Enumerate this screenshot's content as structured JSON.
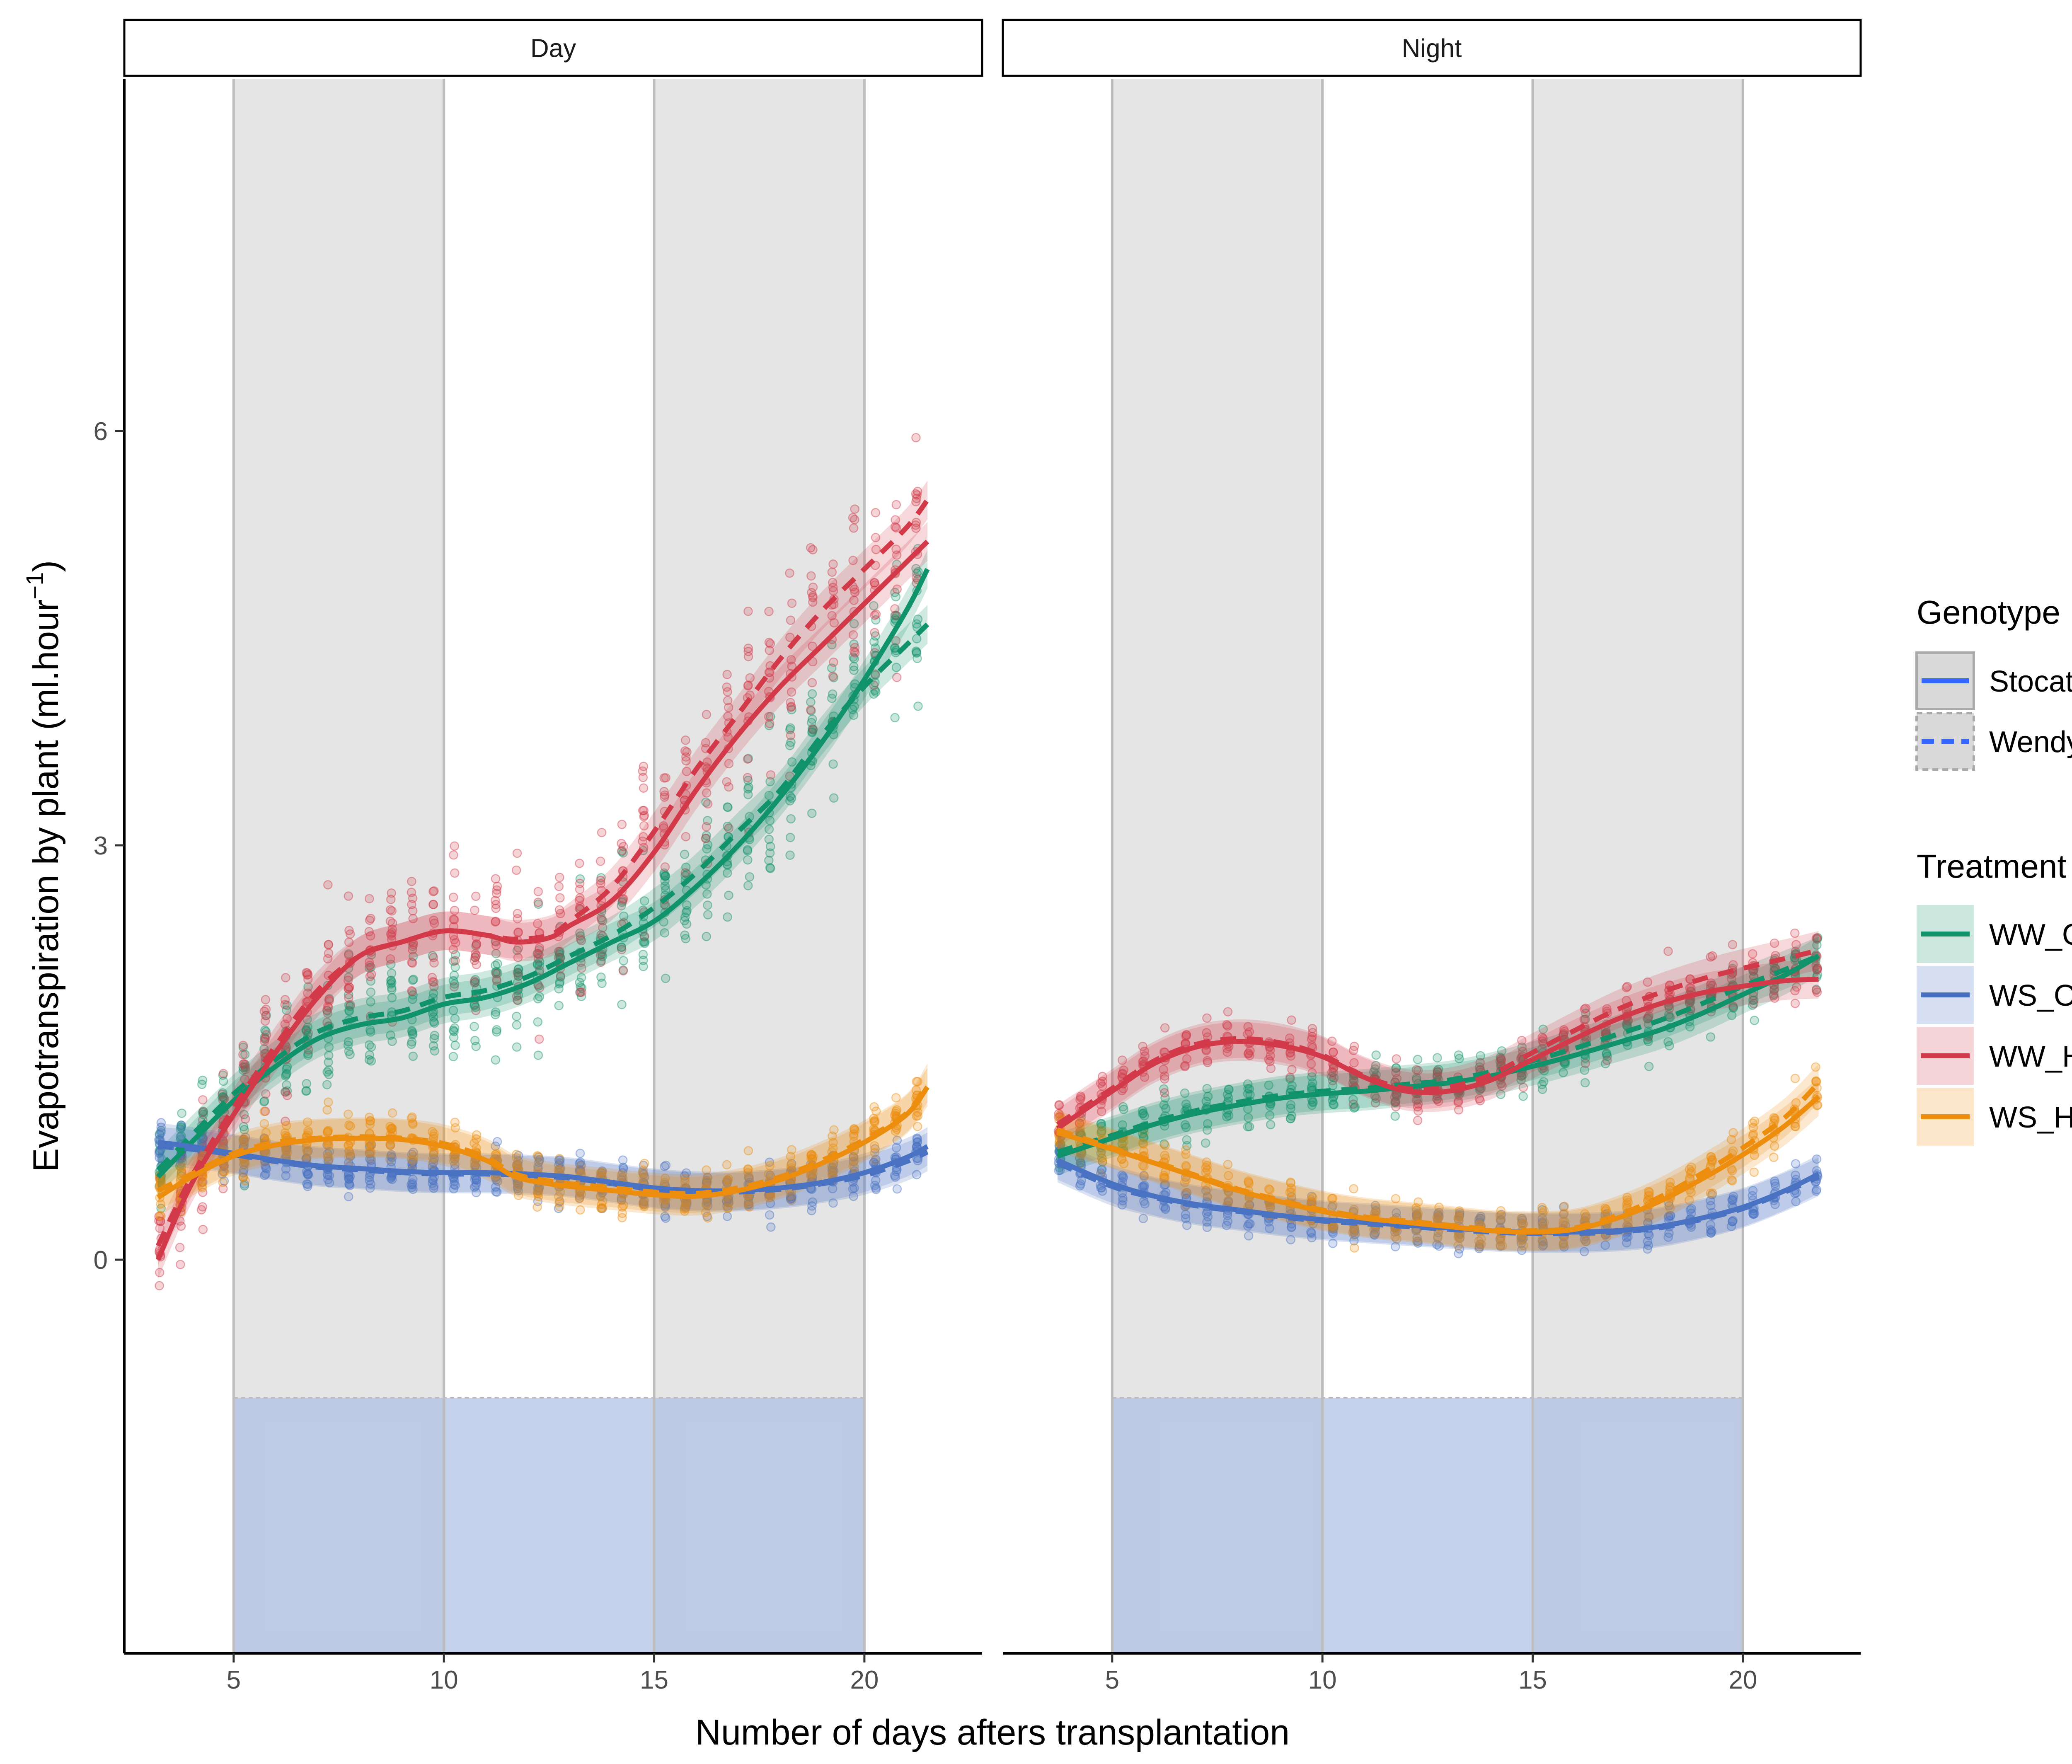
{
  "chart_data": {
    "type": "scatter",
    "facets": [
      "Day",
      "Night"
    ],
    "xlabel": "Number of days afters transplantation",
    "ylabel": "Evapotranspiration by plant (ml.hour",
    "ylabel_exp": "−1",
    "ylabel_close": ")",
    "xlim": [
      2.4,
      22.8
    ],
    "ylim": [
      -2.85,
      8.55
    ],
    "x_ticks": [
      5,
      10,
      15,
      20
    ],
    "y_ticks": [
      0,
      3,
      6
    ],
    "grid": false,
    "legend_position": "right",
    "shaded_periods": [
      [
        5,
        10
      ],
      [
        15,
        20
      ]
    ],
    "stress_band": {
      "y_top": -1.0,
      "x_range": [
        5,
        20
      ]
    },
    "genotype_legend": {
      "title": "Genotype",
      "items": [
        {
          "label": "Stocata",
          "linetype": "solid"
        },
        {
          "label": "Wendy",
          "linetype": "dashed"
        }
      ]
    },
    "treatment_legend": {
      "title": "Treatment",
      "items": [
        {
          "label": "WW_OT",
          "color": "#10926a"
        },
        {
          "label": "WS_OT",
          "color": "#4a72c2"
        },
        {
          "label": "WW_HS",
          "color": "#d23a49"
        },
        {
          "label": "WS_HS",
          "color": "#ec8d0e"
        }
      ]
    },
    "series": [
      {
        "facet": "Day",
        "treatment": "WW_OT",
        "genotype": "Stocata",
        "color": "#10926a",
        "x": [
          3.2,
          4,
          5,
          6,
          7,
          8,
          9,
          10,
          11,
          12,
          13,
          14,
          15,
          16,
          17,
          18,
          19,
          20,
          21,
          21.5
        ],
        "y": [
          0.6,
          0.85,
          1.15,
          1.4,
          1.6,
          1.7,
          1.75,
          1.85,
          1.9,
          2.0,
          2.15,
          2.3,
          2.45,
          2.7,
          3.0,
          3.35,
          3.75,
          4.2,
          4.7,
          5.0
        ]
      },
      {
        "facet": "Day",
        "treatment": "WW_OT",
        "genotype": "Wendy",
        "color": "#10926a",
        "x": [
          3.2,
          4,
          5,
          6,
          7,
          8,
          9,
          10,
          11,
          12,
          13,
          14,
          15,
          16,
          17,
          18,
          19,
          20,
          21,
          21.5
        ],
        "y": [
          0.65,
          0.9,
          1.2,
          1.45,
          1.65,
          1.75,
          1.8,
          1.9,
          1.95,
          2.05,
          2.2,
          2.35,
          2.55,
          2.8,
          3.1,
          3.4,
          3.8,
          4.15,
          4.45,
          4.6
        ]
      },
      {
        "facet": "Day",
        "treatment": "WS_OT",
        "genotype": "Stocata",
        "color": "#4a72c2",
        "x": [
          3.2,
          4,
          5,
          6,
          7,
          8,
          9,
          10,
          11,
          12,
          13,
          14,
          15,
          16,
          17,
          18,
          19,
          20,
          21,
          21.5
        ],
        "y": [
          0.85,
          0.82,
          0.77,
          0.72,
          0.68,
          0.66,
          0.64,
          0.63,
          0.63,
          0.62,
          0.6,
          0.56,
          0.52,
          0.5,
          0.5,
          0.52,
          0.56,
          0.63,
          0.74,
          0.82
        ]
      },
      {
        "facet": "Day",
        "treatment": "WS_OT",
        "genotype": "Wendy",
        "color": "#4a72c2",
        "x": [
          3.2,
          4,
          5,
          6,
          7,
          8,
          9,
          10,
          11,
          12,
          13,
          14,
          15,
          16,
          17,
          18,
          19,
          20,
          21,
          21.5
        ],
        "y": [
          0.82,
          0.8,
          0.76,
          0.71,
          0.67,
          0.65,
          0.63,
          0.62,
          0.62,
          0.61,
          0.59,
          0.55,
          0.51,
          0.49,
          0.49,
          0.51,
          0.55,
          0.61,
          0.71,
          0.78
        ]
      },
      {
        "facet": "Day",
        "treatment": "WW_HS",
        "genotype": "Stocata",
        "color": "#d23a49",
        "x": [
          3.2,
          4,
          5,
          6,
          7,
          8,
          9,
          10,
          11,
          11.7,
          12.5,
          13,
          14,
          15,
          16,
          17,
          18,
          19,
          20,
          21,
          21.5
        ],
        "y": [
          0.0,
          0.55,
          1.05,
          1.5,
          1.9,
          2.2,
          2.3,
          2.38,
          2.35,
          2.3,
          2.33,
          2.42,
          2.6,
          2.95,
          3.4,
          3.8,
          4.15,
          4.45,
          4.75,
          5.05,
          5.2
        ]
      },
      {
        "facet": "Day",
        "treatment": "WW_HS",
        "genotype": "Wendy",
        "color": "#d23a49",
        "x": [
          3.2,
          4,
          5,
          6,
          7,
          8,
          9,
          10,
          11,
          11.7,
          12.5,
          13,
          14,
          15,
          16,
          17,
          18,
          19,
          20,
          21,
          21.5
        ],
        "y": [
          0.1,
          0.6,
          1.1,
          1.55,
          1.95,
          2.2,
          2.3,
          2.38,
          2.35,
          2.32,
          2.35,
          2.45,
          2.7,
          3.1,
          3.55,
          3.95,
          4.35,
          4.7,
          5.0,
          5.3,
          5.5
        ]
      },
      {
        "facet": "Day",
        "treatment": "WS_HS",
        "genotype": "Stocata",
        "color": "#ec8d0e",
        "x": [
          3.2,
          4,
          5,
          6,
          7,
          8,
          9,
          10,
          11,
          11.7,
          12.5,
          13,
          14,
          15,
          16,
          17,
          18,
          19,
          20,
          21,
          21.5
        ],
        "y": [
          0.45,
          0.6,
          0.75,
          0.83,
          0.87,
          0.88,
          0.87,
          0.82,
          0.72,
          0.6,
          0.55,
          0.53,
          0.5,
          0.47,
          0.46,
          0.5,
          0.58,
          0.7,
          0.85,
          1.05,
          1.25
        ]
      },
      {
        "facet": "Day",
        "treatment": "WS_HS",
        "genotype": "Wendy",
        "color": "#ec8d0e",
        "x": [
          3.2,
          4,
          5,
          6,
          7,
          8,
          9,
          10,
          11,
          11.7,
          12.5,
          13,
          14,
          15,
          16,
          17,
          18,
          19,
          20,
          21,
          21.5
        ],
        "y": [
          0.5,
          0.62,
          0.77,
          0.85,
          0.88,
          0.89,
          0.88,
          0.84,
          0.74,
          0.62,
          0.57,
          0.55,
          0.52,
          0.49,
          0.48,
          0.52,
          0.6,
          0.72,
          0.87,
          1.06,
          1.28
        ]
      },
      {
        "facet": "Night",
        "treatment": "WW_OT",
        "genotype": "Stocata",
        "color": "#10926a",
        "x": [
          3.7,
          5,
          6,
          7,
          8,
          9,
          10,
          11,
          12,
          13,
          14,
          15,
          16,
          17,
          18,
          19,
          20,
          21,
          21.8
        ],
        "y": [
          0.75,
          0.88,
          0.98,
          1.06,
          1.12,
          1.17,
          1.2,
          1.22,
          1.25,
          1.28,
          1.33,
          1.4,
          1.48,
          1.57,
          1.66,
          1.78,
          1.92,
          2.06,
          2.2
        ]
      },
      {
        "facet": "Night",
        "treatment": "WW_OT",
        "genotype": "Wendy",
        "color": "#10926a",
        "x": [
          3.7,
          5,
          6,
          7,
          8,
          9,
          10,
          11,
          12,
          13,
          14,
          15,
          16,
          17,
          18,
          19,
          20,
          21,
          21.8
        ],
        "y": [
          0.78,
          0.9,
          1.0,
          1.08,
          1.14,
          1.19,
          1.22,
          1.24,
          1.27,
          1.3,
          1.36,
          1.44,
          1.53,
          1.63,
          1.73,
          1.85,
          1.98,
          2.1,
          2.2
        ]
      },
      {
        "facet": "Night",
        "treatment": "WS_OT",
        "genotype": "Stocata",
        "color": "#4a72c2",
        "x": [
          3.7,
          5,
          6,
          7,
          8,
          9,
          10,
          11,
          12,
          13,
          14,
          15,
          16,
          17,
          18,
          19,
          20,
          21,
          21.8
        ],
        "y": [
          0.72,
          0.55,
          0.46,
          0.4,
          0.36,
          0.32,
          0.29,
          0.27,
          0.25,
          0.23,
          0.21,
          0.2,
          0.2,
          0.21,
          0.24,
          0.3,
          0.38,
          0.5,
          0.62
        ]
      },
      {
        "facet": "Night",
        "treatment": "WS_OT",
        "genotype": "Wendy",
        "color": "#4a72c2",
        "x": [
          3.7,
          5,
          6,
          7,
          8,
          9,
          10,
          11,
          12,
          13,
          14,
          15,
          16,
          17,
          18,
          19,
          20,
          21,
          21.8
        ],
        "y": [
          0.7,
          0.53,
          0.45,
          0.39,
          0.35,
          0.31,
          0.28,
          0.26,
          0.24,
          0.22,
          0.2,
          0.19,
          0.19,
          0.2,
          0.23,
          0.29,
          0.37,
          0.49,
          0.6
        ]
      },
      {
        "facet": "Night",
        "treatment": "WW_HS",
        "genotype": "Stocata",
        "color": "#d23a49",
        "x": [
          3.7,
          5,
          6,
          7,
          8,
          9,
          10,
          11,
          12,
          13,
          14,
          15,
          16,
          17,
          18,
          19,
          20,
          21,
          21.8
        ],
        "y": [
          0.95,
          1.22,
          1.42,
          1.54,
          1.58,
          1.55,
          1.47,
          1.32,
          1.22,
          1.22,
          1.3,
          1.45,
          1.6,
          1.74,
          1.85,
          1.93,
          1.98,
          2.02,
          2.03
        ]
      },
      {
        "facet": "Night",
        "treatment": "WW_HS",
        "genotype": "Wendy",
        "color": "#d23a49",
        "x": [
          3.7,
          5,
          6,
          7,
          8,
          9,
          10,
          11,
          12,
          13,
          14,
          15,
          16,
          17,
          18,
          19,
          20,
          21,
          21.8
        ],
        "y": [
          0.98,
          1.24,
          1.44,
          1.56,
          1.6,
          1.57,
          1.48,
          1.33,
          1.24,
          1.25,
          1.34,
          1.5,
          1.66,
          1.81,
          1.93,
          2.03,
          2.11,
          2.18,
          2.24
        ]
      },
      {
        "facet": "Night",
        "treatment": "WS_HS",
        "genotype": "Stocata",
        "color": "#ec8d0e",
        "x": [
          3.7,
          5,
          6,
          7,
          8,
          9,
          10,
          11,
          12,
          13,
          14,
          15,
          16,
          17,
          18,
          19,
          20,
          21,
          21.8
        ],
        "y": [
          0.92,
          0.8,
          0.7,
          0.6,
          0.5,
          0.42,
          0.35,
          0.3,
          0.27,
          0.24,
          0.21,
          0.2,
          0.22,
          0.3,
          0.42,
          0.58,
          0.76,
          0.97,
          1.18
        ]
      },
      {
        "facet": "Night",
        "treatment": "WS_HS",
        "genotype": "Wendy",
        "color": "#ec8d0e",
        "x": [
          3.7,
          5,
          6,
          7,
          8,
          9,
          10,
          11,
          12,
          13,
          14,
          15,
          16,
          17,
          18,
          19,
          20,
          21,
          21.8
        ],
        "y": [
          0.94,
          0.81,
          0.71,
          0.61,
          0.51,
          0.43,
          0.36,
          0.31,
          0.28,
          0.25,
          0.22,
          0.21,
          0.23,
          0.32,
          0.45,
          0.62,
          0.81,
          1.03,
          1.28
        ]
      }
    ]
  }
}
